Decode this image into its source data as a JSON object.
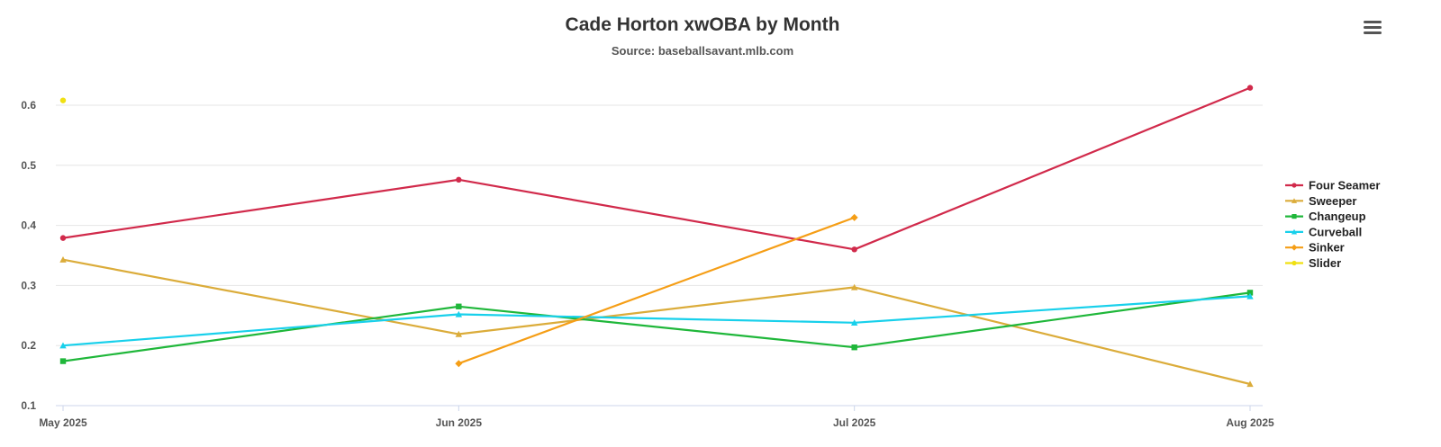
{
  "chart_data": {
    "type": "line",
    "title": "Cade Horton xwOBA by Month",
    "subtitle": "Source: baseballsavant.mlb.com",
    "xlabel": "",
    "ylabel": "",
    "categories": [
      "May 2025",
      "Jun 2025",
      "Jul 2025",
      "Aug 2025"
    ],
    "ylim": [
      0.1,
      0.6
    ],
    "yticks": [
      "0.1",
      "0.2",
      "0.3",
      "0.4",
      "0.5",
      "0.6"
    ],
    "grid": true,
    "legend_position": "right",
    "series": [
      {
        "name": "Four Seamer",
        "color": "#d12a4b",
        "marker": "circle",
        "values": [
          0.379,
          0.476,
          0.36,
          0.629
        ]
      },
      {
        "name": "Sweeper",
        "color": "#dbac3a",
        "marker": "triangle",
        "values": [
          0.343,
          0.219,
          0.297,
          0.136
        ]
      },
      {
        "name": "Changeup",
        "color": "#1fb73a",
        "marker": "square",
        "values": [
          0.174,
          0.265,
          0.197,
          0.288
        ]
      },
      {
        "name": "Curveball",
        "color": "#18d0eb",
        "marker": "triangle",
        "values": [
          0.2,
          0.252,
          0.238,
          0.282
        ]
      },
      {
        "name": "Sinker",
        "color": "#f59e16",
        "marker": "diamond",
        "values": [
          null,
          0.17,
          0.413,
          null
        ]
      },
      {
        "name": "Slider",
        "color": "#f0e012",
        "marker": "circle",
        "values": [
          0.608,
          null,
          null,
          null
        ]
      }
    ]
  }
}
